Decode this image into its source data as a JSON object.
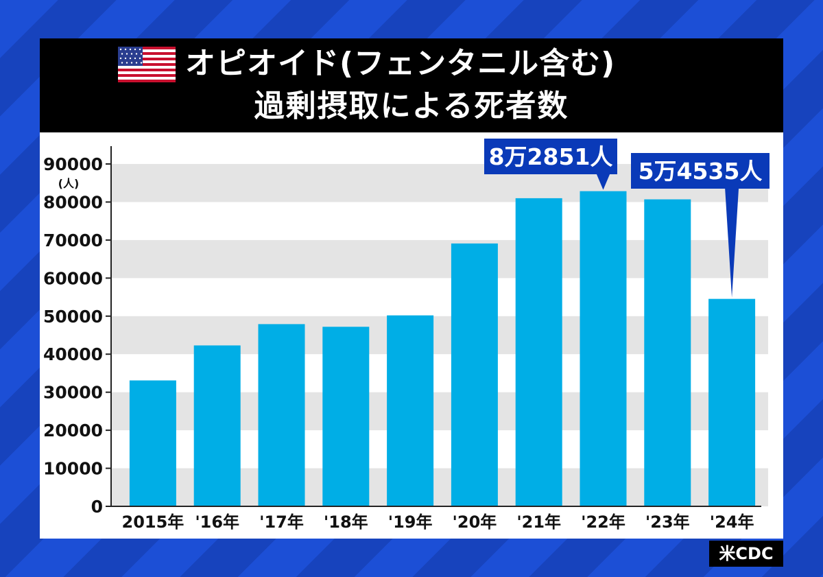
{
  "title": {
    "line1": "オピオイド(フェンタニル含む)",
    "line2": "過剰摂取による死者数"
  },
  "source": "米CDC",
  "colors": {
    "bar": "#00aee6",
    "callout": "#0a3ab8",
    "band": "#e4e4e4",
    "title_bg": "#000000"
  },
  "chart_data": {
    "type": "bar",
    "categories": [
      "2015年",
      "'16年",
      "'17年",
      "'18年",
      "'19年",
      "'20年",
      "'21年",
      "'22年",
      "'23年",
      "'24年"
    ],
    "values": [
      33100,
      42300,
      47900,
      47200,
      50200,
      69100,
      81000,
      82851,
      80700,
      54535
    ],
    "y_unit_label": "(人)",
    "ylim": [
      0,
      90000
    ],
    "y_ticks": [
      "0",
      "10000",
      "20000",
      "30000",
      "40000",
      "50000",
      "60000",
      "70000",
      "80000",
      "90000"
    ],
    "grid": "alternating horizontal bands",
    "annotations": [
      {
        "category_index": 7,
        "text": "8万2851人"
      },
      {
        "category_index": 9,
        "text": "5万4535人"
      }
    ]
  }
}
